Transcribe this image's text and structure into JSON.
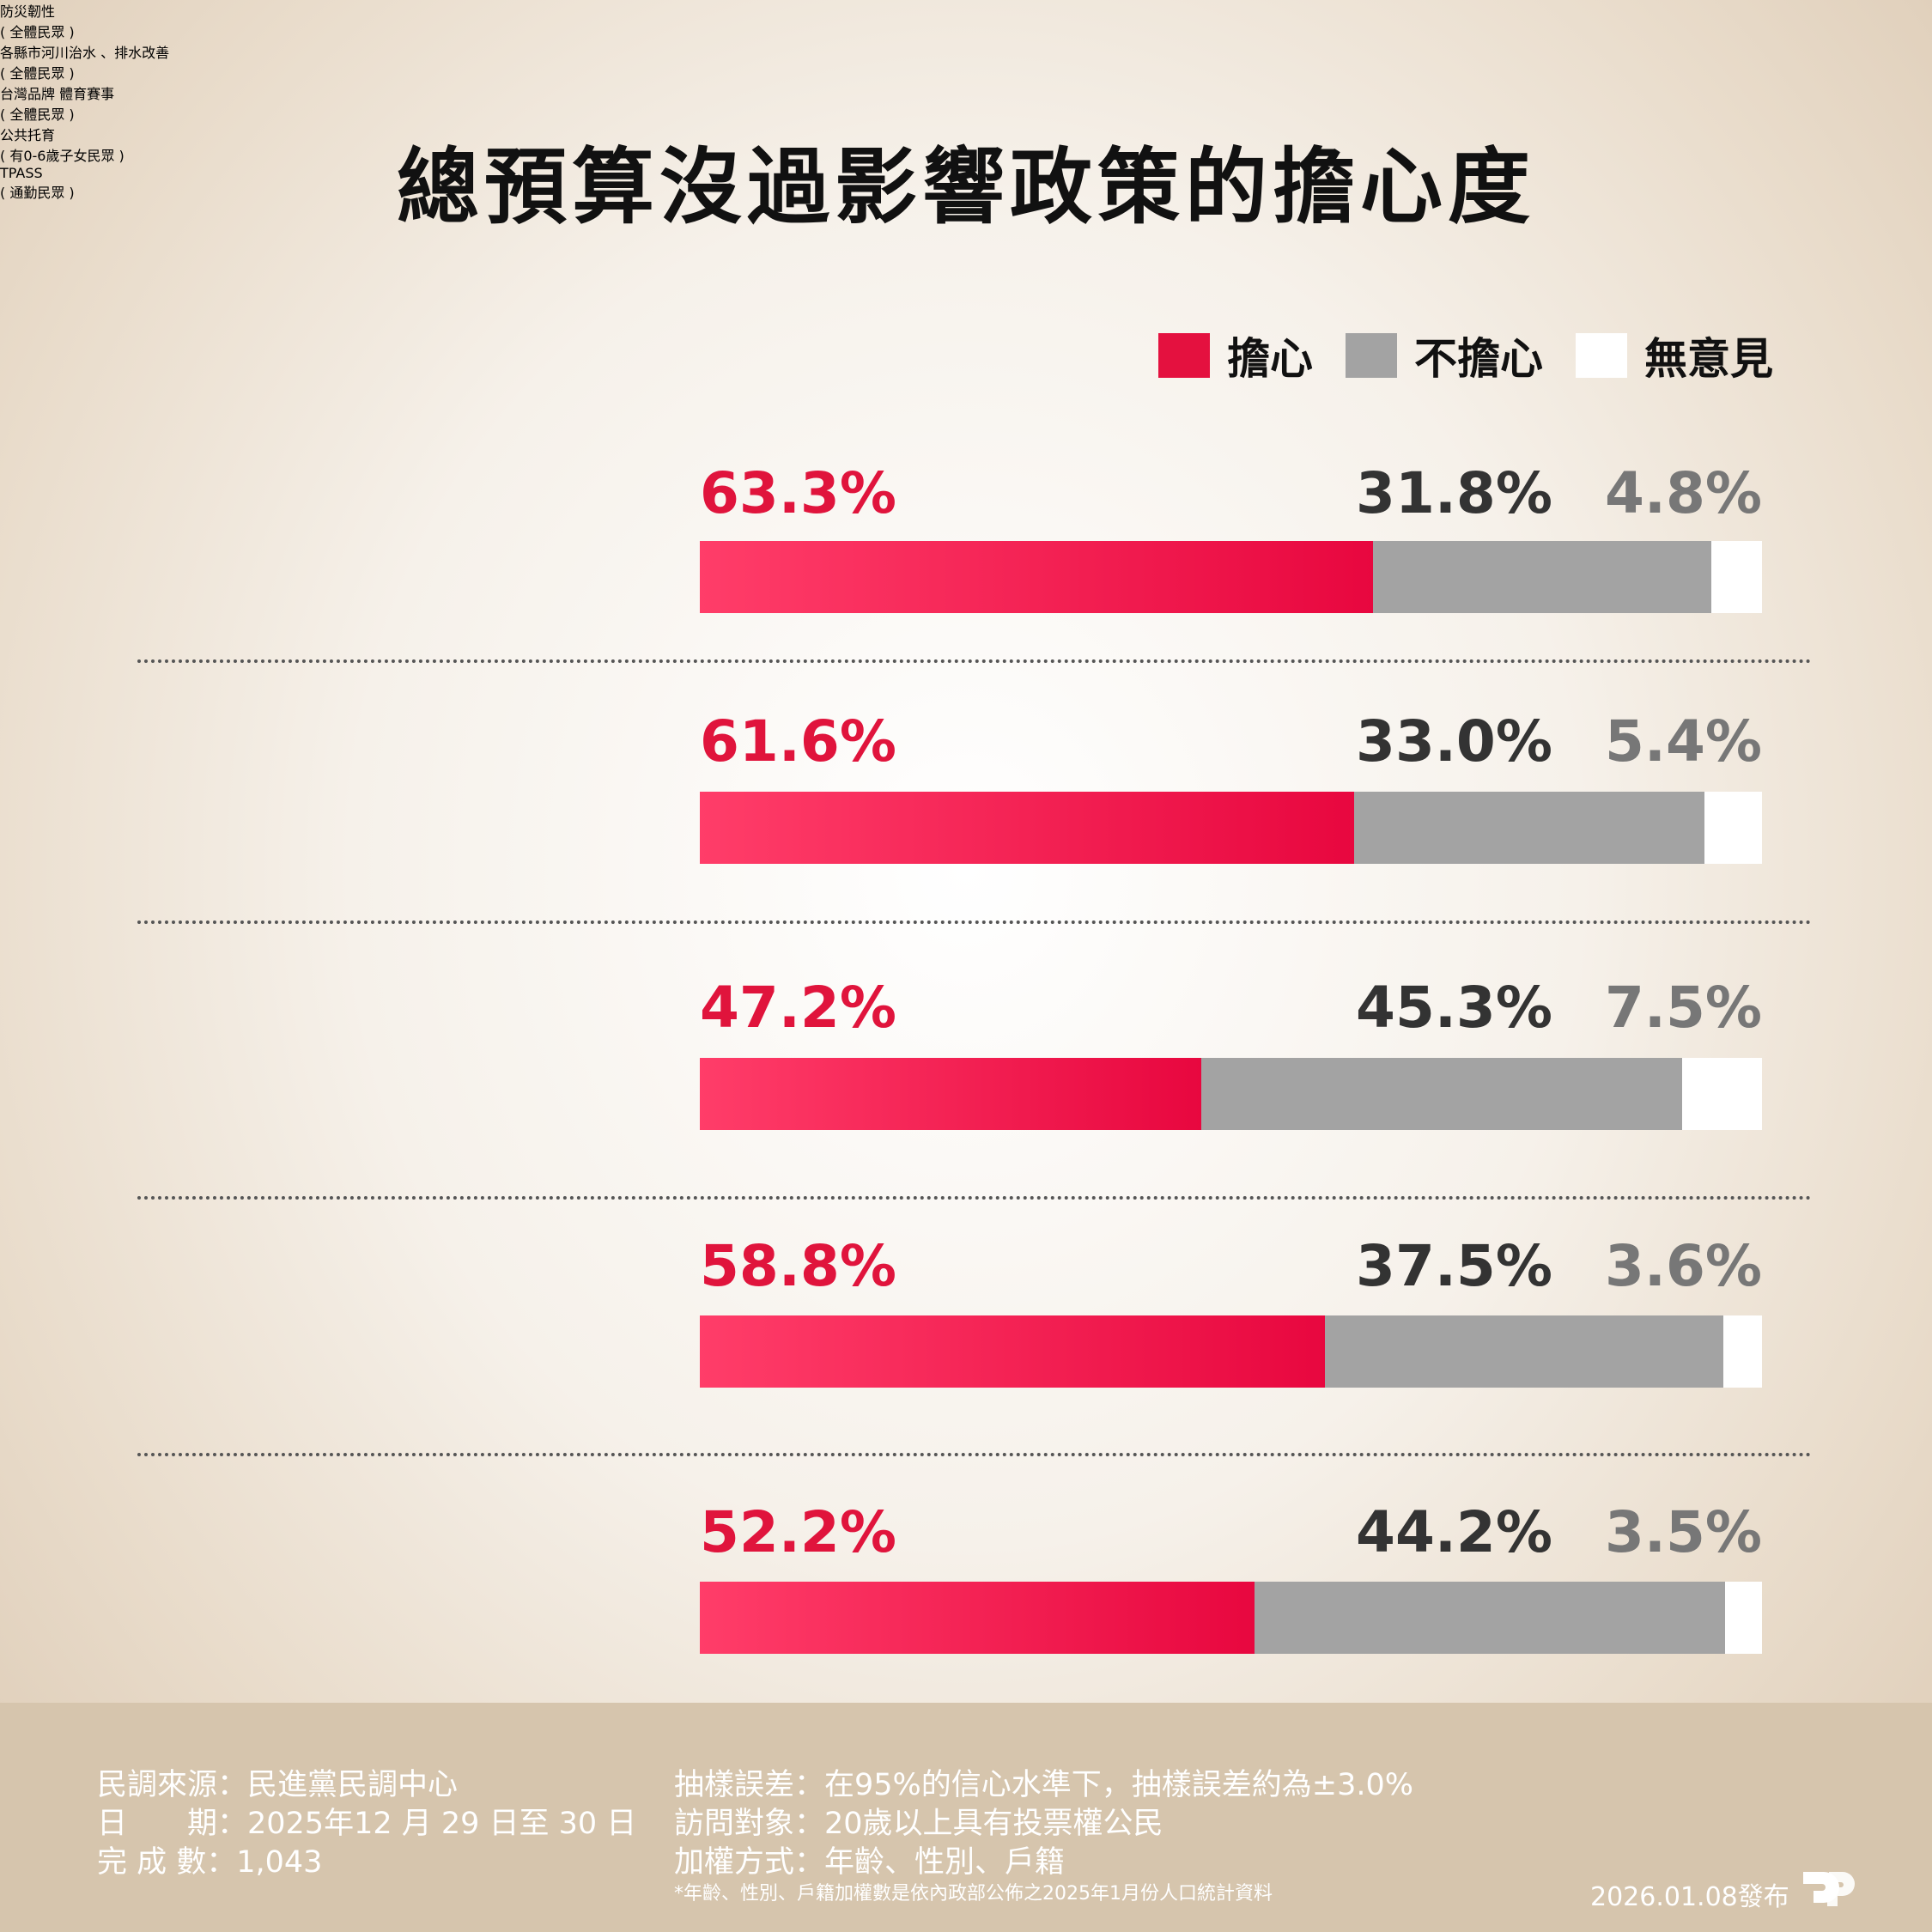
{
  "title": "總預算沒過影響政策的擔心度",
  "legend": [
    {
      "label": "擔心",
      "color": "#e4113f"
    },
    {
      "label": "不擔心",
      "color": "#a3a3a3"
    },
    {
      "label": "無意見",
      "color": "#ffffff"
    }
  ],
  "chart_data": {
    "type": "bar",
    "stacked": true,
    "orientation": "horizontal",
    "title": "總預算沒過影響政策的擔心度",
    "categories": [
      "防災韌性",
      "各縣市河川治水、排水改善",
      "台灣品牌體育賽事",
      "公共托育",
      "TPASS"
    ],
    "series": [
      {
        "name": "擔心",
        "values": [
          63.3,
          61.6,
          47.2,
          58.8,
          52.2
        ]
      },
      {
        "name": "不擔心",
        "values": [
          31.8,
          33.0,
          45.3,
          37.5,
          44.2
        ]
      },
      {
        "name": "無意見",
        "values": [
          4.8,
          5.4,
          7.5,
          3.6,
          3.5
        ]
      }
    ],
    "rows": [
      {
        "label": "防災韌性",
        "sub": "( 全體民眾 )",
        "c": "63.3%",
        "n": "31.8%",
        "u": "4.8%"
      },
      {
        "label": "各縣市河川治水\n、排水改善",
        "sub": "( 全體民眾 )",
        "c": "61.6%",
        "n": "33.0%",
        "u": "5.4%"
      },
      {
        "label": "台灣品牌\n體育賽事",
        "sub": "( 全體民眾 )",
        "c": "47.2%",
        "n": "45.3%",
        "u": "7.5%"
      },
      {
        "label": "公共托育",
        "sub": "( 有0-6歲子女民眾 )",
        "c": "58.8%",
        "n": "37.5%",
        "u": "3.6%"
      },
      {
        "label": "TPASS",
        "sub": "( 通勤民眾 )",
        "c": "52.2%",
        "n": "44.2%",
        "u": "3.5%"
      }
    ]
  },
  "footer": {
    "source": "民調來源：民進黨民調中心",
    "date": "日　　期：2025年12 月 29 日至 30 日",
    "count": "完 成 數：1,043",
    "error": "抽樣誤差：在95%的信心水準下，抽樣誤差約為±3.0%",
    "target": "訪問對象：20歲以上具有投票權公民",
    "weight": "加權方式：年齡、性別、戶籍",
    "note": "*年齡、性別、戶籍加權數是依內政部公佈之2025年1月份人口統計資料",
    "published": "2026.01.08發布"
  }
}
